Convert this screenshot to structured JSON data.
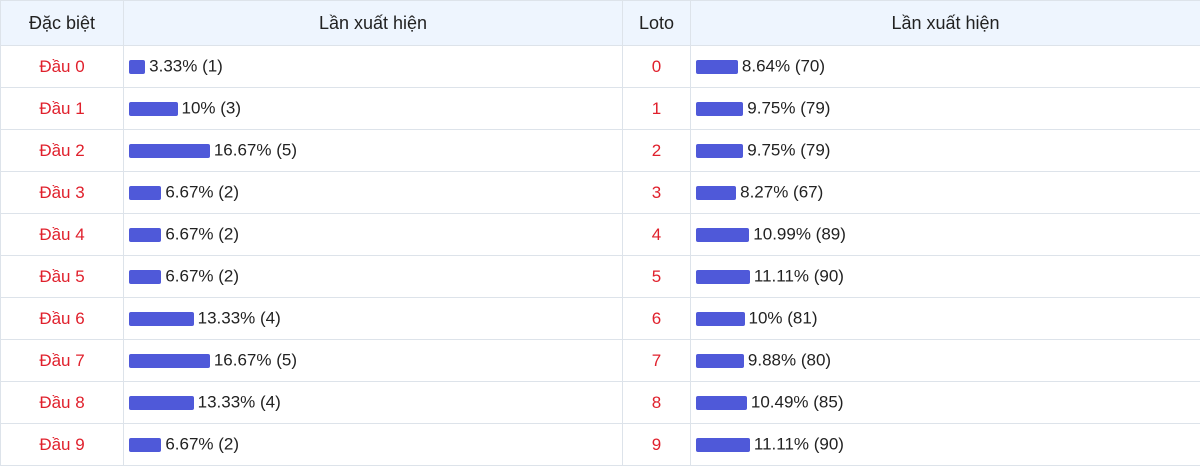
{
  "table": {
    "header": [
      "Đặc biệt",
      "Lần xuất hiện",
      "Loto",
      "Lần xuất hiện"
    ],
    "left": [
      {
        "head": "Đầu 0",
        "percent": 3.33,
        "label": "3.33% (1)"
      },
      {
        "head": "Đầu 1",
        "percent": 10,
        "label": "10% (3)"
      },
      {
        "head": "Đầu 2",
        "percent": 16.67,
        "label": "16.67% (5)"
      },
      {
        "head": "Đầu 3",
        "percent": 6.67,
        "label": "6.67% (2)"
      },
      {
        "head": "Đầu 4",
        "percent": 6.67,
        "label": "6.67% (2)"
      },
      {
        "head": "Đầu 5",
        "percent": 6.67,
        "label": "6.67% (2)"
      },
      {
        "head": "Đầu 6",
        "percent": 13.33,
        "label": "13.33% (4)"
      },
      {
        "head": "Đầu 7",
        "percent": 16.67,
        "label": "16.67% (5)"
      },
      {
        "head": "Đầu 8",
        "percent": 13.33,
        "label": "13.33% (4)"
      },
      {
        "head": "Đầu 9",
        "percent": 6.67,
        "label": "6.67% (2)"
      }
    ],
    "right": [
      {
        "head": "0",
        "percent": 8.64,
        "label": "8.64% (70)"
      },
      {
        "head": "1",
        "percent": 9.75,
        "label": "9.75% (79)"
      },
      {
        "head": "2",
        "percent": 9.75,
        "label": "9.75% (79)"
      },
      {
        "head": "3",
        "percent": 8.27,
        "label": "8.27% (67)"
      },
      {
        "head": "4",
        "percent": 10.99,
        "label": "10.99% (89)"
      },
      {
        "head": "5",
        "percent": 11.11,
        "label": "11.11% (90)"
      },
      {
        "head": "6",
        "percent": 10,
        "label": "10% (81)"
      },
      {
        "head": "7",
        "percent": 9.88,
        "label": "9.88% (80)"
      },
      {
        "head": "8",
        "percent": 10.49,
        "label": "10.49% (85)"
      },
      {
        "head": "9",
        "percent": 11.11,
        "label": "11.11% (90)"
      }
    ]
  }
}
